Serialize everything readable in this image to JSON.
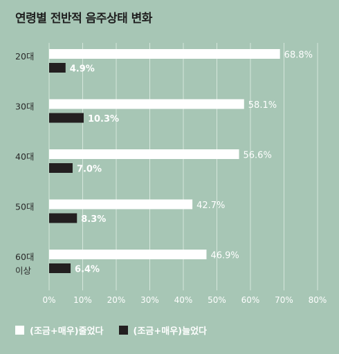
{
  "chart_data": {
    "type": "bar",
    "orientation": "horizontal",
    "title": "연령별 전반적 음주상태 변화",
    "categories": [
      [
        "20대"
      ],
      [
        "30대"
      ],
      [
        "40대"
      ],
      [
        "50대"
      ],
      [
        "60대",
        "이상"
      ]
    ],
    "series": [
      {
        "name": "(조금+매우)줄었다",
        "color": "#ffffff",
        "values": [
          68.8,
          58.1,
          56.6,
          42.7,
          46.9
        ]
      },
      {
        "name": "(조금+매우)늘었다",
        "color": "#231f20",
        "values": [
          4.9,
          10.3,
          7.0,
          8.3,
          6.4
        ]
      }
    ],
    "data_labels": [
      [
        "68.8%",
        "58.1%",
        "56.6%",
        "42.7%",
        "46.9%"
      ],
      [
        "4.9%",
        "10.3%",
        "7.0%",
        "8.3%",
        "6.4%"
      ]
    ],
    "x_ticks": [
      "0%",
      "10%",
      "20%",
      "30%",
      "40%",
      "50%",
      "60%",
      "70%",
      "80%"
    ],
    "xlim": [
      0,
      80
    ],
    "grid": true,
    "legend_position": "bottom-left"
  }
}
